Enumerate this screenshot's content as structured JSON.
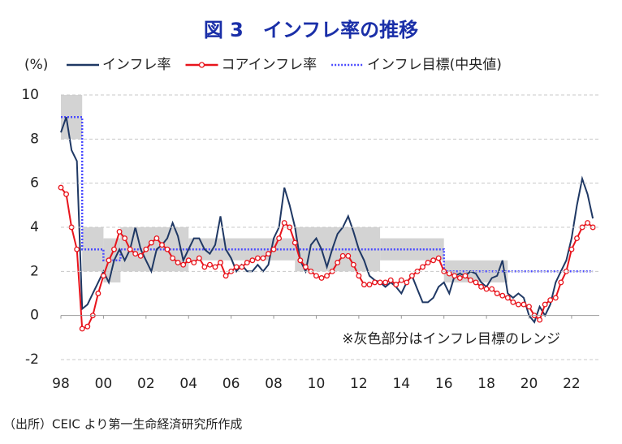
{
  "chart_data": {
    "type": "line",
    "title": "図 3　インフレ率の推移",
    "y_label": "(%)",
    "annotation": "※灰色部分はインフレ目標のレンジ",
    "source": "（出所）CEIC より第一生命経済研究所作成",
    "x": [
      1998,
      1998.25,
      1998.5,
      1998.75,
      1999,
      1999.25,
      1999.5,
      1999.75,
      2000,
      2000.25,
      2000.5,
      2000.75,
      2001,
      2001.25,
      2001.5,
      2001.75,
      2002,
      2002.25,
      2002.5,
      2002.75,
      2003,
      2003.25,
      2003.5,
      2003.75,
      2004,
      2004.25,
      2004.5,
      2004.75,
      2005,
      2005.25,
      2005.5,
      2005.75,
      2006,
      2006.25,
      2006.5,
      2006.75,
      2007,
      2007.25,
      2007.5,
      2007.75,
      2008,
      2008.25,
      2008.5,
      2008.75,
      2009,
      2009.25,
      2009.5,
      2009.75,
      2010,
      2010.25,
      2010.5,
      2010.75,
      2011,
      2011.25,
      2011.5,
      2011.75,
      2012,
      2012.25,
      2012.5,
      2012.75,
      2013,
      2013.25,
      2013.5,
      2013.75,
      2014,
      2014.25,
      2014.5,
      2014.75,
      2015,
      2015.25,
      2015.5,
      2015.75,
      2016,
      2016.25,
      2016.5,
      2016.75,
      2017,
      2017.25,
      2017.5,
      2017.75,
      2018,
      2018.25,
      2018.5,
      2018.75,
      2019,
      2019.25,
      2019.5,
      2019.75,
      2020,
      2020.25,
      2020.5,
      2020.75,
      2021,
      2021.25,
      2021.5,
      2021.75,
      2022,
      2022.25,
      2022.5,
      2022.75,
      2023
    ],
    "series": [
      {
        "name": "インフレ率",
        "color": "#1f3864",
        "style": "solid",
        "values": [
          8.3,
          9.0,
          7.5,
          7.0,
          0.3,
          0.5,
          1.0,
          1.5,
          2.0,
          1.5,
          2.5,
          3.0,
          2.5,
          3.0,
          4.0,
          3.0,
          2.5,
          2.0,
          3.0,
          3.2,
          3.5,
          4.2,
          3.6,
          2.5,
          3.0,
          3.5,
          3.5,
          3.0,
          2.8,
          3.2,
          4.5,
          3.0,
          2.6,
          2.0,
          2.3,
          2.0,
          2.0,
          2.3,
          2.0,
          2.3,
          3.5,
          4.0,
          5.8,
          5.0,
          4.0,
          2.5,
          2.0,
          3.2,
          3.5,
          3.0,
          2.2,
          3.0,
          3.7,
          4.0,
          4.5,
          3.8,
          3.0,
          2.5,
          1.8,
          1.6,
          1.5,
          1.3,
          1.5,
          1.3,
          1.0,
          1.5,
          1.8,
          1.2,
          0.6,
          0.6,
          0.8,
          1.3,
          1.5,
          1.0,
          1.8,
          1.9,
          1.8,
          2.0,
          1.9,
          1.5,
          1.3,
          1.7,
          1.8,
          2.5,
          1.0,
          0.8,
          1.0,
          0.8,
          0.0,
          -0.3,
          0.4,
          0.0,
          0.5,
          1.5,
          2.0,
          2.5,
          3.5,
          5.0,
          6.2,
          5.5,
          4.4
        ]
      },
      {
        "name": "コアインフレ率",
        "color": "#e8141c",
        "style": "marker",
        "values": [
          5.8,
          5.5,
          4.0,
          3.0,
          -0.6,
          -0.5,
          0.0,
          1.0,
          1.8,
          2.5,
          3.0,
          3.8,
          3.5,
          3.0,
          2.8,
          2.7,
          3.0,
          3.3,
          3.5,
          3.2,
          3.0,
          2.6,
          2.4,
          2.3,
          2.5,
          2.4,
          2.6,
          2.2,
          2.3,
          2.2,
          2.4,
          1.8,
          2.0,
          2.2,
          2.2,
          2.4,
          2.5,
          2.6,
          2.6,
          2.8,
          3.0,
          3.5,
          4.2,
          4.0,
          3.3,
          2.5,
          2.2,
          2.0,
          1.8,
          1.7,
          1.8,
          2.0,
          2.4,
          2.7,
          2.7,
          2.3,
          1.8,
          1.4,
          1.4,
          1.5,
          1.5,
          1.5,
          1.6,
          1.4,
          1.6,
          1.5,
          1.8,
          2.0,
          2.2,
          2.4,
          2.5,
          2.6,
          2.0,
          1.9,
          1.8,
          1.7,
          1.8,
          1.6,
          1.5,
          1.3,
          1.2,
          1.2,
          1.0,
          0.9,
          0.8,
          0.6,
          0.5,
          0.5,
          0.4,
          0.0,
          -0.2,
          0.5,
          0.7,
          0.8,
          1.5,
          2.0,
          3.0,
          3.5,
          4.0,
          4.2,
          4.0
        ]
      }
    ],
    "target": {
      "name": "インフレ目標(中央値)",
      "color": "#4a4aff",
      "style": "dotted",
      "x": [
        1998,
        1999,
        1999,
        2000,
        2000,
        2000.8,
        2000.8,
        2016,
        2016,
        2023
      ],
      "values": [
        9,
        9,
        3,
        3,
        2.5,
        2.5,
        3,
        3,
        2,
        2
      ]
    },
    "target_band": {
      "color": "#d3d3d3",
      "start": [
        1998,
        1999,
        2000,
        2000.8,
        2004,
        2009,
        2013,
        2016
      ],
      "end": [
        1999,
        2000,
        2000.8,
        2004,
        2009,
        2013,
        2016,
        2019
      ],
      "low": [
        8,
        2,
        1.5,
        2,
        2.5,
        2,
        2.5,
        1.5
      ],
      "high": [
        10,
        4,
        3.5,
        4,
        3.5,
        4,
        3.5,
        2.5
      ]
    },
    "xlim": [
      1998,
      2023.3
    ],
    "xticks": [
      {
        "value": 1998,
        "label": "98"
      },
      {
        "value": 2000,
        "label": "00"
      },
      {
        "value": 2002,
        "label": "02"
      },
      {
        "value": 2004,
        "label": "04"
      },
      {
        "value": 2006,
        "label": "06"
      },
      {
        "value": 2008,
        "label": "08"
      },
      {
        "value": 2010,
        "label": "10"
      },
      {
        "value": 2012,
        "label": "12"
      },
      {
        "value": 2014,
        "label": "14"
      },
      {
        "value": 2016,
        "label": "16"
      },
      {
        "value": 2018,
        "label": "18"
      },
      {
        "value": 2020,
        "label": "20"
      },
      {
        "value": 2022,
        "label": "22"
      }
    ],
    "ylim": [
      -2,
      10
    ],
    "yticks": [
      -2,
      0,
      2,
      4,
      6,
      8,
      10
    ],
    "grid": true
  }
}
